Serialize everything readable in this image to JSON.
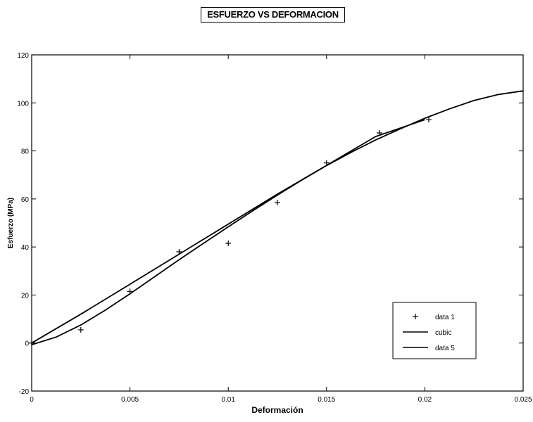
{
  "chart_data": {
    "type": "line",
    "title": "ESFUERZO VS DEFORMACION",
    "xlabel": "Deformación",
    "ylabel": "Esfuerzo (MPa)",
    "xlim": [
      0,
      0.025
    ],
    "ylim": [
      -20,
      120
    ],
    "xticks": [
      0,
      0.005,
      0.01,
      0.015,
      0.02,
      0.025
    ],
    "xtick_labels": [
      "0",
      "0.005",
      "0.01",
      "0.015",
      "0.02",
      "0.025"
    ],
    "yticks": [
      -20,
      0,
      20,
      40,
      60,
      80,
      100,
      120
    ],
    "ytick_labels": [
      "-20",
      "0",
      "20",
      "40",
      "60",
      "80",
      "100",
      "120"
    ],
    "grid": false,
    "legend_position": "bottom-right",
    "series": [
      {
        "name": "data 1",
        "style": "markers",
        "marker": "+",
        "x": [
          0,
          0.0025,
          0.005,
          0.0075,
          0.01,
          0.0125,
          0.015,
          0.0177,
          0.0202
        ],
        "y": [
          0,
          5.5,
          21.5,
          38,
          41.5,
          58.5,
          75,
          87.5,
          93
        ]
      },
      {
        "name": "cubic",
        "style": "line",
        "x": [
          0,
          0.00125,
          0.0025,
          0.00375,
          0.005,
          0.00625,
          0.0075,
          0.00875,
          0.01,
          0.01125,
          0.0125,
          0.01375,
          0.015,
          0.01625,
          0.0175,
          0.01875,
          0.02,
          0.02125,
          0.0225,
          0.02375,
          0.025
        ],
        "y": [
          -0.7,
          2.5,
          7.5,
          13.7,
          20.5,
          27.6,
          34.7,
          41.6,
          48.4,
          55.1,
          61.6,
          67.9,
          73.9,
          79.4,
          84.6,
          89.2,
          93.6,
          97.5,
          101,
          103.5,
          105
        ]
      },
      {
        "name": "data 5",
        "style": "line",
        "x": [
          0,
          0.0025,
          0.005,
          0.0075,
          0.01,
          0.0125,
          0.015,
          0.0175,
          0.02
        ],
        "y": [
          0,
          12,
          24.5,
          37,
          49.5,
          62,
          74,
          86,
          93
        ]
      }
    ],
    "colors": {
      "axis": "#000000",
      "series": "#000000",
      "background": "#ffffff"
    }
  }
}
